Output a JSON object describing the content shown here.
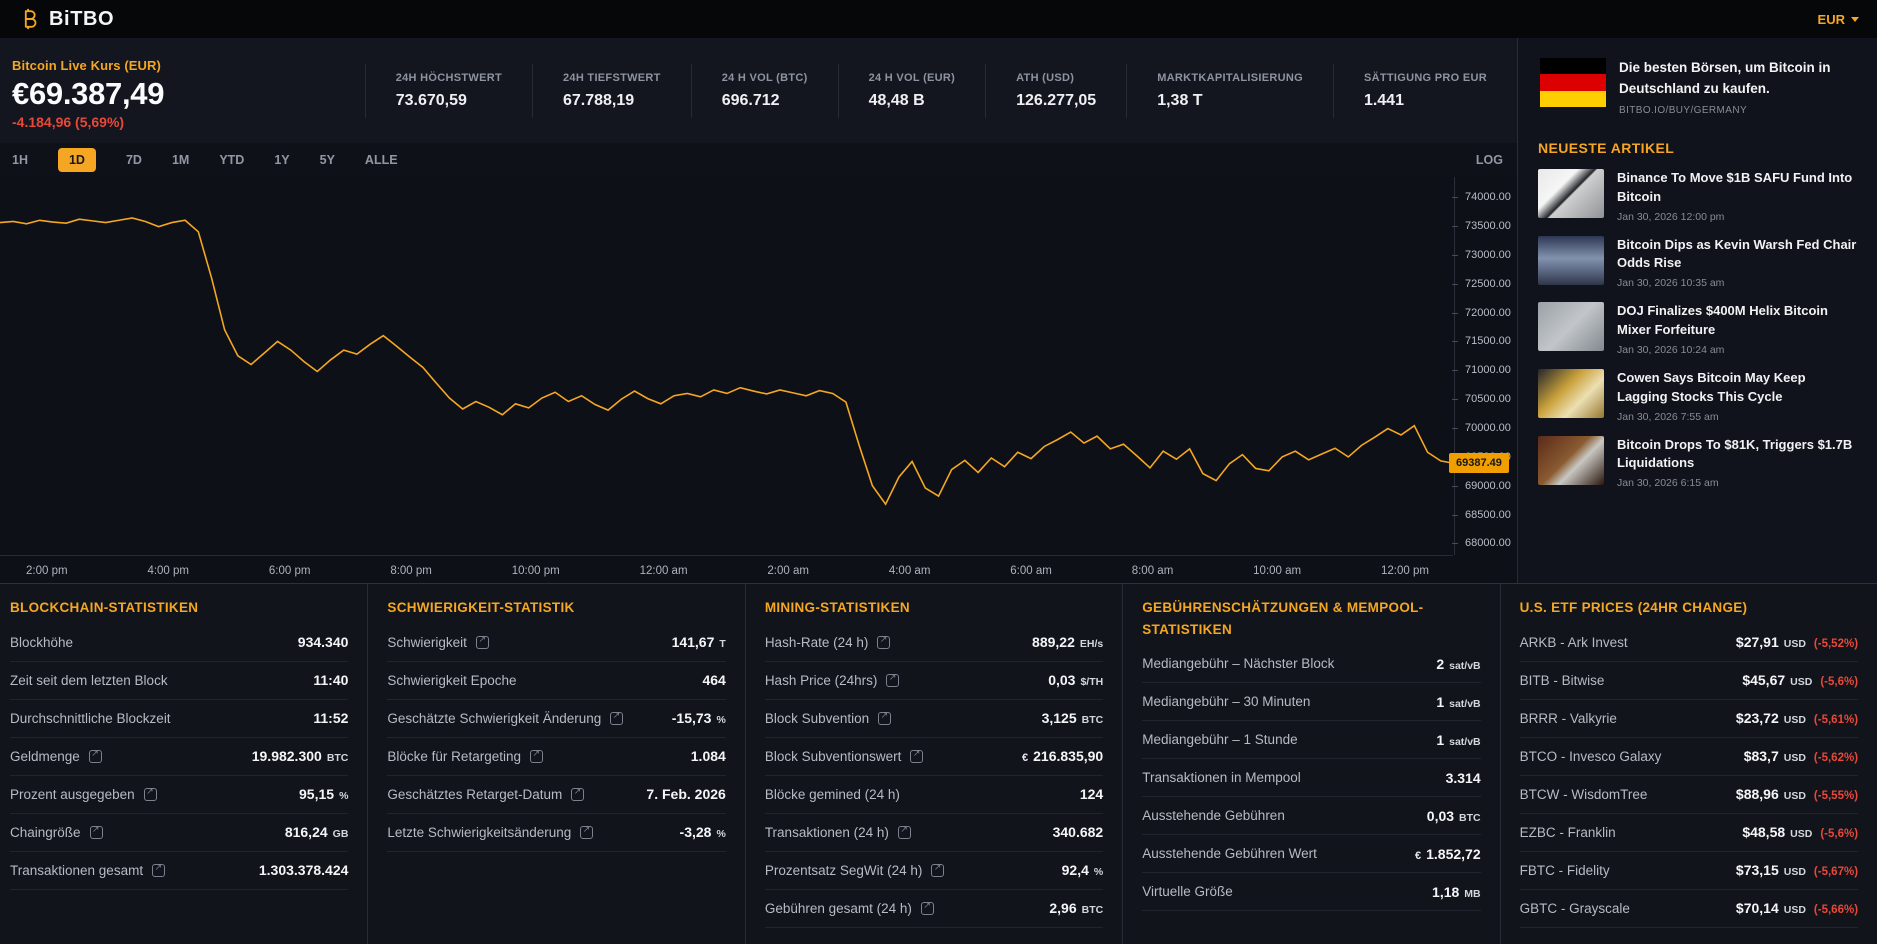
{
  "theme": {
    "accent": "#f5a623",
    "negative": "#e8483a",
    "badge": "#f09e00",
    "line_color": "#f5a623"
  },
  "header": {
    "logo_text": "BiTBO",
    "currency": "EUR"
  },
  "price": {
    "label": "Bitcoin Live Kurs (EUR)",
    "value": "€69.387,49",
    "change": "-4.184,96 (5,69%)"
  },
  "stats": [
    {
      "label": "24H HÖCHSTWERT",
      "value": "73.670,59"
    },
    {
      "label": "24H TIEFSTWERT",
      "value": "67.788,19"
    },
    {
      "label": "24 H VOL (BTC)",
      "value": "696.712"
    },
    {
      "label": "24 H VOL (EUR)",
      "value": "48,48 B"
    },
    {
      "label": "ATH (USD)",
      "value": "126.277,05"
    },
    {
      "label": "MARKTKAPITALISIERUNG",
      "value": "1,38 T"
    },
    {
      "label": "SÄTTIGUNG PRO EUR",
      "value": "1.441"
    }
  ],
  "chart_controls": {
    "ranges": [
      {
        "label": "1H",
        "active": false
      },
      {
        "label": "1D",
        "active": true
      },
      {
        "label": "7D",
        "active": false
      },
      {
        "label": "1M",
        "active": false
      },
      {
        "label": "YTD",
        "active": false
      },
      {
        "label": "1Y",
        "active": false
      },
      {
        "label": "5Y",
        "active": false
      },
      {
        "label": "ALLE",
        "active": false
      }
    ],
    "scale_toggle": "LOG"
  },
  "chart_data": {
    "type": "line",
    "title": "Bitcoin Live Kurs (EUR) – 1D",
    "ylabel": "EUR",
    "legend": "none",
    "grid": "off",
    "current_price": "69387.49",
    "y_domain": [
      67800,
      74350
    ],
    "y_ticks": [
      "74000.00",
      "73500.00",
      "73000.00",
      "72500.00",
      "72000.00",
      "71500.00",
      "71000.00",
      "70500.00",
      "70000.00",
      "69500.00",
      "69000.00",
      "68500.00",
      "68000.00"
    ],
    "x_ticks": [
      "2:00 pm",
      "4:00 pm",
      "6:00 pm",
      "8:00 pm",
      "10:00 pm",
      "12:00 am",
      "2:00 am",
      "4:00 am",
      "6:00 am",
      "8:00 am",
      "10:00 am",
      "12:00 pm"
    ],
    "values": [
      73560,
      73580,
      73540,
      73600,
      73570,
      73550,
      73620,
      73590,
      73560,
      73600,
      73640,
      73580,
      73490,
      73560,
      73600,
      73400,
      72600,
      71700,
      71250,
      71100,
      71300,
      71500,
      71350,
      71150,
      70980,
      71180,
      71350,
      71280,
      71450,
      71600,
      71420,
      71230,
      71050,
      70780,
      70520,
      70330,
      70460,
      70360,
      70230,
      70420,
      70350,
      70520,
      70620,
      70460,
      70560,
      70410,
      70310,
      70500,
      70640,
      70510,
      70420,
      70560,
      70600,
      70540,
      70660,
      70600,
      70700,
      70640,
      70590,
      70660,
      70610,
      70560,
      70650,
      70600,
      70450,
      69700,
      69000,
      68680,
      69150,
      69420,
      68960,
      68820,
      69280,
      69440,
      69230,
      69480,
      69330,
      69580,
      69470,
      69680,
      69800,
      69930,
      69740,
      69860,
      69640,
      69720,
      69520,
      69310,
      69600,
      69460,
      69640,
      69210,
      69090,
      69380,
      69540,
      69300,
      69260,
      69500,
      69600,
      69450,
      69550,
      69650,
      69500,
      69700,
      69840,
      69990,
      69880,
      70040,
      69580,
      69430,
      69387
    ]
  },
  "promo": {
    "title": "Die besten Börsen, um Bitcoin in Deutschland zu kaufen.",
    "url_label": "BITBO.IO/BUY/GERMANY"
  },
  "articles": {
    "heading": "NEUESTE ARTIKEL",
    "items": [
      {
        "title": "Binance To Move $1B SAFU Fund Into Bitcoin",
        "date": "Jan 30, 2026  12:00 pm",
        "image": "thumb-tablet"
      },
      {
        "title": "Bitcoin Dips as Kevin Warsh Fed Chair Odds Rise",
        "date": "Jan 30, 2026  10:35 am",
        "image": "thumb-fed"
      },
      {
        "title": "DOJ Finalizes $400M Helix Bitcoin Mixer Forfeiture",
        "date": "Jan 30, 2026  10:24 am",
        "image": "thumb-doj"
      },
      {
        "title": "Cowen Says Bitcoin May Keep Lagging Stocks This Cycle",
        "date": "Jan 30, 2026  7:55 am",
        "image": "thumb-wallet"
      },
      {
        "title": "Bitcoin Drops To $81K, Triggers $1.7B Liquidations",
        "date": "Jan 30, 2026  6:15 am",
        "image": "thumb-coins"
      }
    ]
  },
  "panels": [
    {
      "title": "BLOCKCHAIN-STATISTIKEN",
      "rows": [
        {
          "label": "Blockhöhe",
          "value": "934.340"
        },
        {
          "label": "Zeit seit dem letzten Block",
          "value": "11:40"
        },
        {
          "label": "Durchschnittliche Blockzeit",
          "value": "11:52"
        },
        {
          "label": "Geldmenge",
          "ext": true,
          "value": "19.982.300",
          "unit": "BTC"
        },
        {
          "label": "Prozent ausgegeben",
          "ext": true,
          "value": "95,15",
          "unit": "%"
        },
        {
          "label": "Chaingröße",
          "ext": true,
          "value": "816,24",
          "unit": "GB"
        },
        {
          "label": "Transaktionen gesamt",
          "ext": true,
          "value": "1.303.378.424"
        }
      ]
    },
    {
      "title": "SCHWIERIGKEIT-STATISTIK",
      "rows": [
        {
          "label": "Schwierigkeit",
          "ext": true,
          "value": "141,67",
          "unit": "T"
        },
        {
          "label": "Schwierigkeit Epoche",
          "value": "464"
        },
        {
          "label": "Geschätzte Schwierigkeit Änderung",
          "ext": true,
          "value": "-15,73",
          "unit": "%"
        },
        {
          "label": "Blöcke für Retargeting",
          "ext": true,
          "value": "1.084"
        },
        {
          "label": "Geschätztes Retarget-Datum",
          "ext": true,
          "value": "7. Feb. 2026"
        },
        {
          "label": "Letzte Schwierigkeitsänderung",
          "ext": true,
          "value": "-3,28",
          "unit": "%"
        }
      ]
    },
    {
      "title": "MINING-STATISTIKEN",
      "rows": [
        {
          "label": "Hash-Rate (24 h)",
          "ext": true,
          "value": "889,22",
          "unit": "EH/s"
        },
        {
          "label": "Hash Price (24hrs)",
          "ext": true,
          "value": "0,03",
          "unit": "$/TH"
        },
        {
          "label": "Block Subvention",
          "ext": true,
          "value": "3,125",
          "unit": "BTC"
        },
        {
          "label": "Block Subventionswert",
          "ext": true,
          "prefix": "€",
          "value": "216.835,90"
        },
        {
          "label": "Blöcke gemined (24 h)",
          "value": "124"
        },
        {
          "label": "Transaktionen (24 h)",
          "ext": true,
          "value": "340.682"
        },
        {
          "label": "Prozentsatz SegWit (24 h)",
          "ext": true,
          "value": "92,4",
          "unit": "%"
        },
        {
          "label": "Gebühren gesamt (24 h)",
          "ext": true,
          "value": "2,96",
          "unit": "BTC"
        }
      ]
    },
    {
      "title": "GEBÜHRENSCHÄTZUNGEN & MEMPOOL-STATISTIKEN",
      "rows": [
        {
          "label": "Mediangebühr – Nächster Block",
          "value": "2",
          "unit": "sat/vB"
        },
        {
          "label": "Mediangebühr – 30 Minuten",
          "value": "1",
          "unit": "sat/vB"
        },
        {
          "label": "Mediangebühr – 1 Stunde",
          "value": "1",
          "unit": "sat/vB"
        },
        {
          "label": "Transaktionen in Mempool",
          "value": "3.314"
        },
        {
          "label": "Ausstehende Gebühren",
          "value": "0,03",
          "unit": "BTC"
        },
        {
          "label": "Ausstehende Gebühren Wert",
          "prefix": "€",
          "value": "1.852,72"
        },
        {
          "label": "Virtuelle Größe",
          "value": "1,18",
          "unit": "MB"
        }
      ]
    },
    {
      "title": "U.S. ETF PRICES (24HR CHANGE)",
      "rows": [
        {
          "label": "ARKB - Ark Invest",
          "value": "$27,91",
          "unit": "USD",
          "change": "(-5,52%)"
        },
        {
          "label": "BITB - Bitwise",
          "value": "$45,67",
          "unit": "USD",
          "change": "(-5,6%)"
        },
        {
          "label": "BRRR - Valkyrie",
          "value": "$23,72",
          "unit": "USD",
          "change": "(-5,61%)"
        },
        {
          "label": "BTCO - Invesco Galaxy",
          "value": "$83,7",
          "unit": "USD",
          "change": "(-5,62%)"
        },
        {
          "label": "BTCW - WisdomTree",
          "value": "$88,96",
          "unit": "USD",
          "change": "(-5,55%)"
        },
        {
          "label": "EZBC - Franklin",
          "value": "$48,58",
          "unit": "USD",
          "change": "(-5,6%)"
        },
        {
          "label": "FBTC - Fidelity",
          "value": "$73,15",
          "unit": "USD",
          "change": "(-5,67%)"
        },
        {
          "label": "GBTC - Grayscale",
          "value": "$70,14",
          "unit": "USD",
          "change": "(-5,66%)"
        }
      ]
    }
  ]
}
